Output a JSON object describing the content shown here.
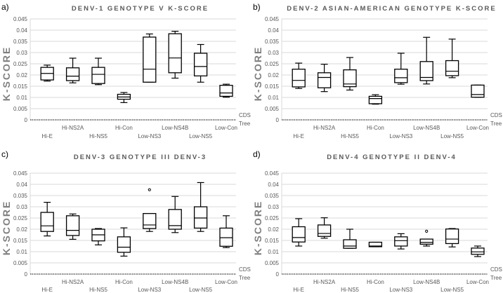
{
  "chart_data": [
    {
      "type": "box",
      "panel_label": "a)",
      "title": "DENV-1 GENOTYPE V K-SCORE",
      "ylabel": "K-SCORE",
      "ylim": [
        0,
        0.045
      ],
      "yticks": [
        "0",
        "0.005",
        "0.01",
        "0.015",
        "0.02",
        "0.025",
        "0.03",
        "0.035",
        "0.04",
        "0.045"
      ],
      "baseline_labels": [
        "CDS",
        "Tree"
      ],
      "categories": [
        "Hi-E",
        "Hi-NS2A",
        "Hi-NS5",
        "Hi-Con",
        "Low-NS3",
        "Low-NS4B",
        "Low-NS5",
        "Low-Con"
      ],
      "boxes": [
        {
          "min": 0.0173,
          "q1": 0.0178,
          "median": 0.0207,
          "q3": 0.0234,
          "max": 0.0244
        },
        {
          "min": 0.0165,
          "q1": 0.0175,
          "median": 0.0195,
          "q3": 0.0232,
          "max": 0.0275
        },
        {
          "min": 0.0157,
          "q1": 0.0162,
          "median": 0.0203,
          "q3": 0.0234,
          "max": 0.0275
        },
        {
          "min": 0.0077,
          "q1": 0.0092,
          "median": 0.0102,
          "q3": 0.0114,
          "max": 0.0122
        },
        {
          "min": 0.0168,
          "q1": 0.0168,
          "median": 0.0226,
          "q3": 0.0369,
          "max": 0.0383
        },
        {
          "min": 0.0186,
          "q1": 0.021,
          "median": 0.0276,
          "q3": 0.0384,
          "max": 0.0395
        },
        {
          "min": 0.0168,
          "q1": 0.0196,
          "median": 0.0238,
          "q3": 0.0297,
          "max": 0.0336
        },
        {
          "min": 0.0101,
          "q1": 0.0105,
          "median": 0.012,
          "q3": 0.0154,
          "max": 0.0159
        }
      ],
      "grid": true
    },
    {
      "type": "box",
      "panel_label": "b)",
      "title": "DENV-2 ASIAN-AMERICAN GENOTYPE K-SCORE",
      "ylabel": "K-SCORE",
      "ylim": [
        0,
        0.045
      ],
      "yticks": [
        "0",
        "0.005",
        "0.01",
        "0.015",
        "0.02",
        "0.025",
        "0.03",
        "0.035",
        "0.04",
        "0.045"
      ],
      "baseline_labels": [
        "CDS",
        "Tree"
      ],
      "categories": [
        "Hi-E",
        "Hi-NS2A",
        "Hi-NS5",
        "Hi-Con",
        "Low-NS3",
        "Low-NS4B",
        "Low-NS5",
        "Low-Con"
      ],
      "boxes": [
        {
          "min": 0.014,
          "q1": 0.0147,
          "median": 0.0176,
          "q3": 0.0226,
          "max": 0.0253
        },
        {
          "min": 0.0126,
          "q1": 0.0143,
          "median": 0.0189,
          "q3": 0.021,
          "max": 0.0248
        },
        {
          "min": 0.0133,
          "q1": 0.0148,
          "median": 0.016,
          "q3": 0.0223,
          "max": 0.0278
        },
        {
          "min": 0.007,
          "q1": 0.0072,
          "median": 0.0095,
          "q3": 0.0105,
          "max": 0.0112
        },
        {
          "min": 0.0159,
          "q1": 0.0166,
          "median": 0.0188,
          "q3": 0.0226,
          "max": 0.0297
        },
        {
          "min": 0.016,
          "q1": 0.0175,
          "median": 0.0189,
          "q3": 0.026,
          "max": 0.0368
        },
        {
          "min": 0.0188,
          "q1": 0.0197,
          "median": 0.0217,
          "q3": 0.0264,
          "max": 0.036
        },
        {
          "min": 0.0101,
          "q1": 0.0101,
          "median": 0.0113,
          "q3": 0.0155,
          "max": 0.0155
        }
      ],
      "grid": true
    },
    {
      "type": "box",
      "panel_label": "c)",
      "title": "DENV-3 GENOTYPE III DENV-3",
      "ylabel": "K-SCORE",
      "ylim": [
        0,
        0.045
      ],
      "yticks": [
        "0",
        "0.005",
        "0.01",
        "0.015",
        "0.02",
        "0.025",
        "0.03",
        "0.035",
        "0.04",
        "0.045"
      ],
      "baseline_labels": [
        "CDS",
        "Tree"
      ],
      "categories": [
        "Hi-E",
        "Hi-NS2A",
        "Hi-NS5",
        "Hi-Con",
        "Low-NS3",
        "Low-NS4B",
        "Low-NS5",
        "Low-Con"
      ],
      "boxes": [
        {
          "min": 0.017,
          "q1": 0.019,
          "median": 0.0215,
          "q3": 0.0275,
          "max": 0.032
        },
        {
          "min": 0.0155,
          "q1": 0.0172,
          "median": 0.0195,
          "q3": 0.026,
          "max": 0.0268
        },
        {
          "min": 0.013,
          "q1": 0.0148,
          "median": 0.0175,
          "q3": 0.02,
          "max": 0.0203
        },
        {
          "min": 0.008,
          "q1": 0.0097,
          "median": 0.012,
          "q3": 0.0166,
          "max": 0.0206
        },
        {
          "min": 0.019,
          "q1": 0.0203,
          "median": 0.0219,
          "q3": 0.027,
          "max": 0.027,
          "outliers": [
            0.0376
          ]
        },
        {
          "min": 0.0185,
          "q1": 0.02,
          "median": 0.0216,
          "q3": 0.0288,
          "max": 0.0346
        },
        {
          "min": 0.019,
          "q1": 0.0205,
          "median": 0.025,
          "q3": 0.03,
          "max": 0.0408
        },
        {
          "min": 0.0118,
          "q1": 0.0124,
          "median": 0.0162,
          "q3": 0.0205,
          "max": 0.026
        }
      ],
      "grid": true
    },
    {
      "type": "box",
      "panel_label": "d)",
      "title": "DENV-4 GENOTYPE II DENV-4",
      "ylabel": "K-SCORE",
      "ylim": [
        0,
        0.045
      ],
      "yticks": [
        "0",
        "0.005",
        "0.01",
        "0.015",
        "0.02",
        "0.025",
        "0.03",
        "0.035",
        "0.04",
        "0.045"
      ],
      "baseline_labels": [
        "CDS",
        "Tree"
      ],
      "categories": [
        "Hi-E",
        "Hi-NS2A",
        "Hi-NS5",
        "Hi-Con",
        "Low-NS3",
        "Low-NS4B",
        "Low-NS5",
        "Low-Con"
      ],
      "boxes": [
        {
          "min": 0.0125,
          "q1": 0.0143,
          "median": 0.0163,
          "q3": 0.0211,
          "max": 0.0247
        },
        {
          "min": 0.016,
          "q1": 0.0168,
          "median": 0.0181,
          "q3": 0.0219,
          "max": 0.0251
        },
        {
          "min": 0.0115,
          "q1": 0.0115,
          "median": 0.0125,
          "q3": 0.0153,
          "max": 0.02
        },
        {
          "min": 0.0122,
          "q1": 0.0122,
          "median": 0.0125,
          "q3": 0.0142,
          "max": 0.0142
        },
        {
          "min": 0.0112,
          "q1": 0.0125,
          "median": 0.0149,
          "q3": 0.0166,
          "max": 0.018
        },
        {
          "min": 0.0125,
          "q1": 0.0133,
          "median": 0.0141,
          "q3": 0.0156,
          "max": 0.0156,
          "outliers": [
            0.0191
          ]
        },
        {
          "min": 0.0121,
          "q1": 0.0136,
          "median": 0.0156,
          "q3": 0.0201,
          "max": 0.0203
        },
        {
          "min": 0.0078,
          "q1": 0.0088,
          "median": 0.0099,
          "q3": 0.0116,
          "max": 0.0125
        }
      ],
      "grid": true
    }
  ]
}
